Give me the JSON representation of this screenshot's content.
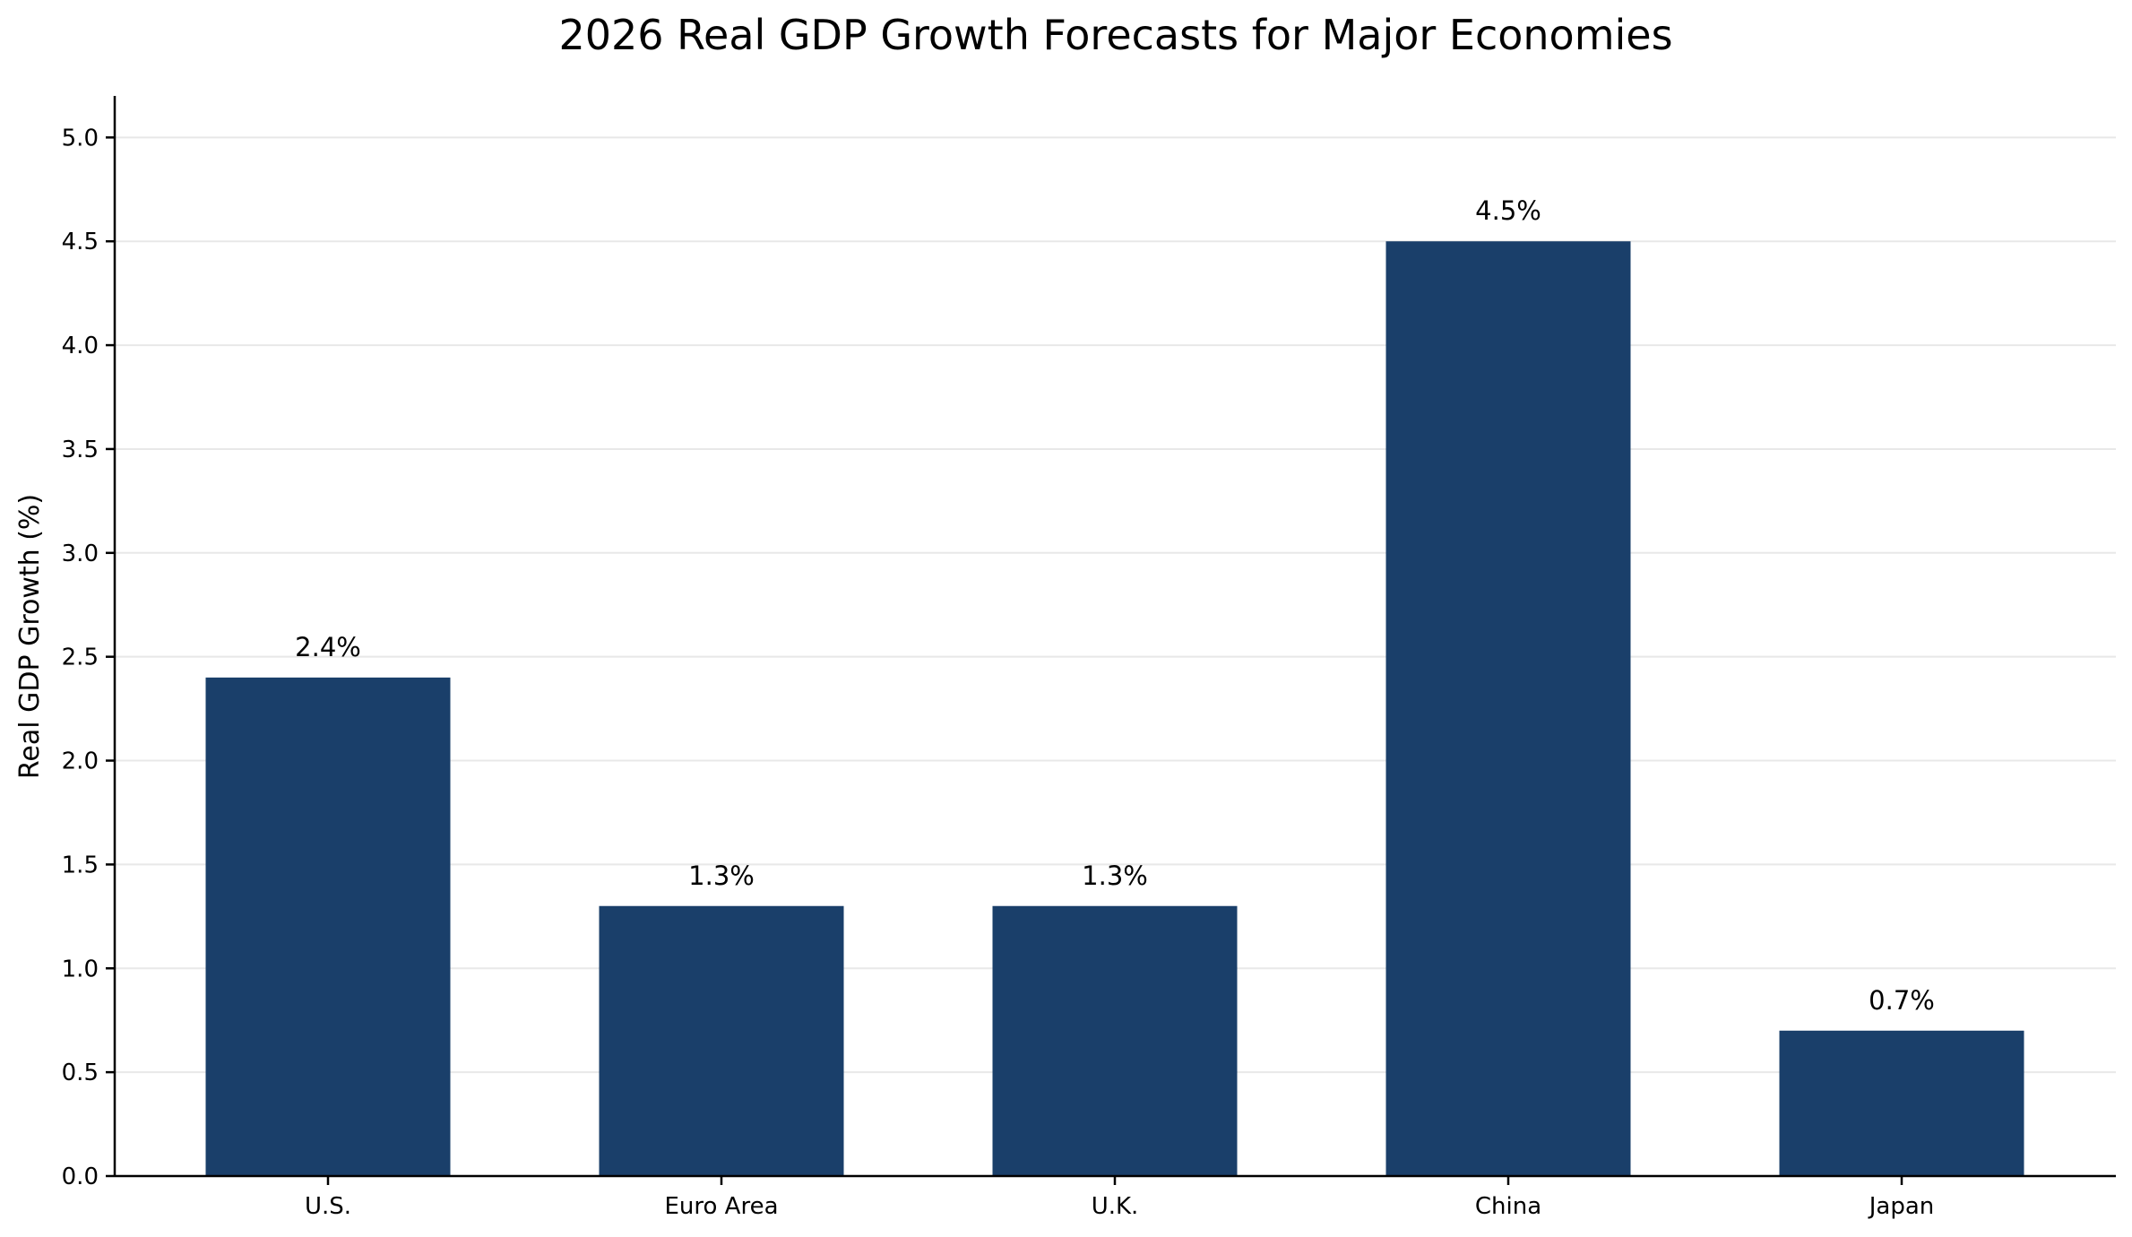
{
  "chart_data": {
    "type": "bar",
    "title": "2026 Real GDP Growth Forecasts for Major Economies",
    "xlabel": "",
    "ylabel": "Real GDP Growth (%)",
    "categories": [
      "U.S.",
      "Euro Area",
      "U.K.",
      "China",
      "Japan"
    ],
    "values": [
      2.4,
      1.3,
      1.3,
      4.5,
      0.7
    ],
    "data_labels": [
      "2.4%",
      "1.3%",
      "1.3%",
      "4.5%",
      "0.7%"
    ],
    "ylim": [
      0,
      5.2
    ],
    "yticks": [
      0.0,
      0.5,
      1.0,
      1.5,
      2.0,
      2.5,
      3.0,
      3.5,
      4.0,
      4.5,
      5.0
    ],
    "ytick_labels": [
      "0.0",
      "0.5",
      "1.0",
      "1.5",
      "2.0",
      "2.5",
      "3.0",
      "3.5",
      "4.0",
      "4.5",
      "5.0"
    ],
    "grid": "horizontal",
    "legend": "none",
    "bar_color": "#1a3f6a"
  }
}
